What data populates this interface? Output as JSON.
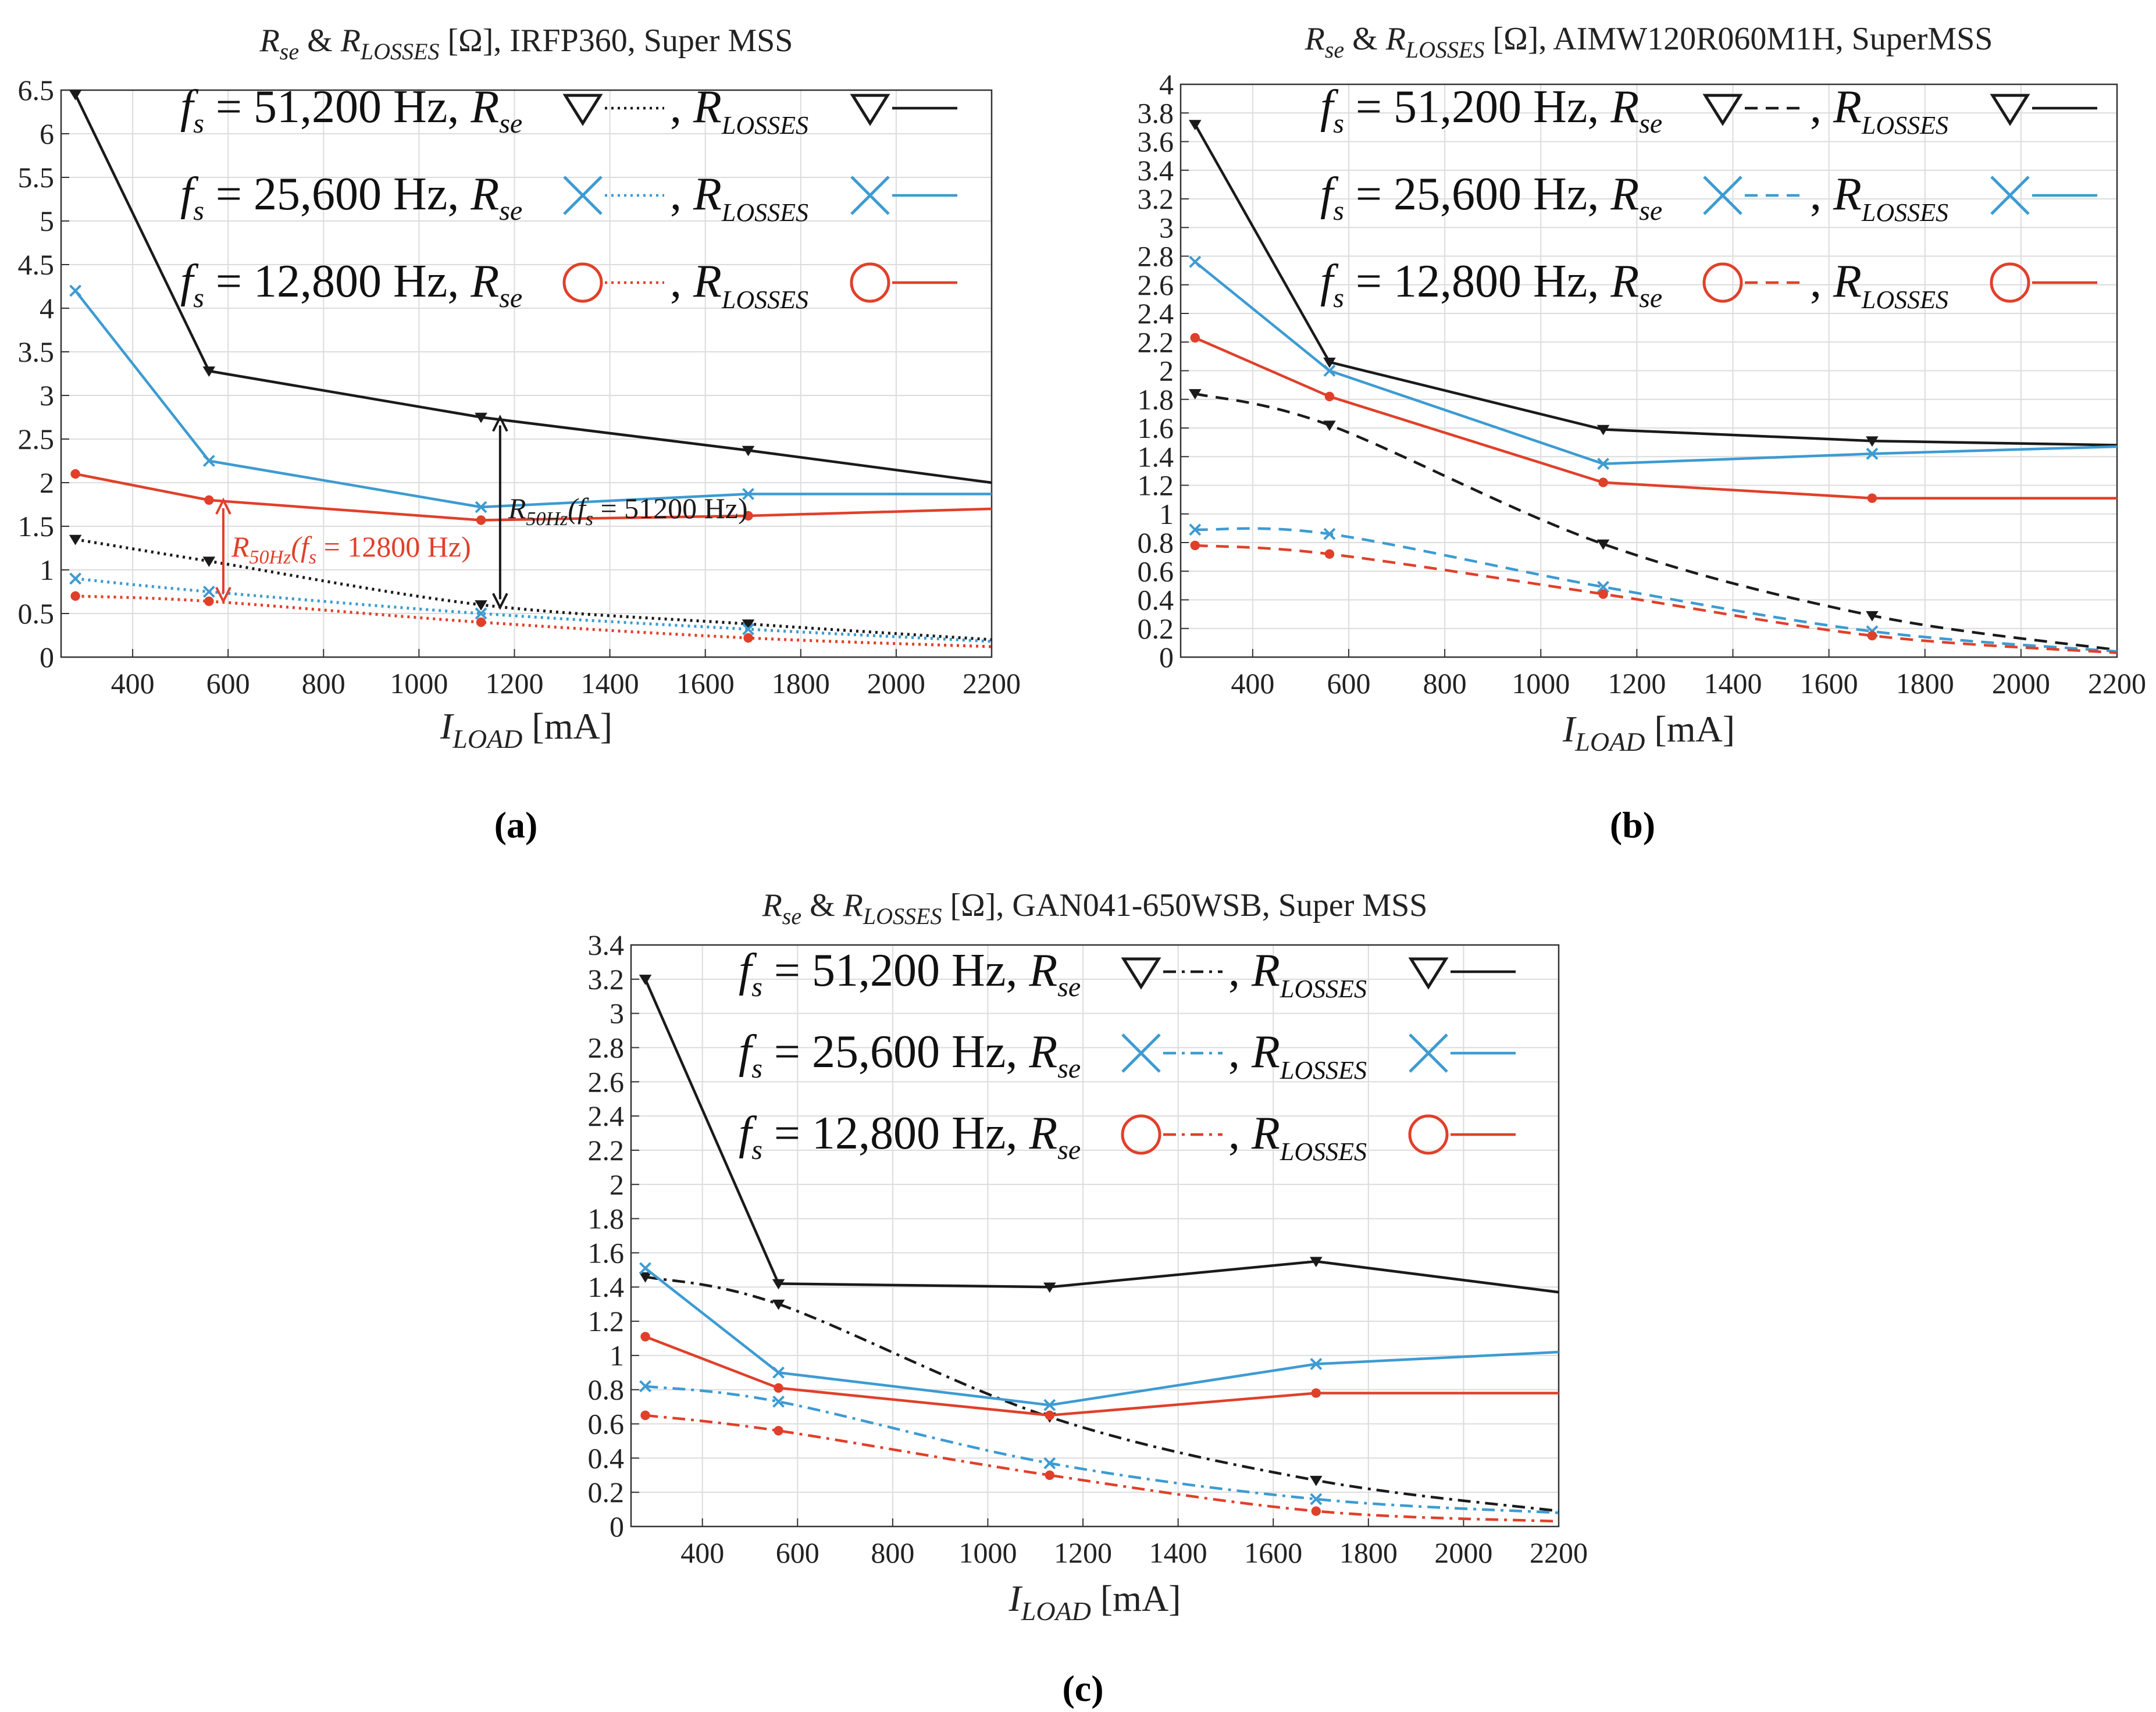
{
  "figure": {
    "captions": [
      "(a)",
      "(b)",
      "(c)"
    ]
  },
  "colors": {
    "black": "#1a1a1a",
    "blue": "#3d9bd2",
    "red": "#e0402a",
    "grid": "#dcdcdc",
    "axis": "#333333"
  },
  "chart_data": [
    {
      "type": "line",
      "title_parts": {
        "r1": "R",
        "s1": "se",
        "amp": " & ",
        "r2": "R",
        "s2": "LOSSES",
        "rest": " [Ω], IRFP360, Super MSS"
      },
      "xlabel": {
        "main": "I",
        "sub": "LOAD",
        "unit": " [mA]"
      },
      "xlim": [
        250,
        2200
      ],
      "ylim": [
        0,
        6.5
      ],
      "xticks": [
        400,
        600,
        800,
        1000,
        1200,
        1400,
        1600,
        1800,
        2000,
        2200
      ],
      "yticks": [
        0,
        0.5,
        1,
        1.5,
        2,
        2.5,
        3,
        3.5,
        4,
        4.5,
        5,
        5.5,
        6,
        6.5
      ],
      "grid": true,
      "legend_rows": [
        {
          "fs": "f",
          "fsub": "s",
          "freq": " = 51,200 Hz, ",
          "rse": "R",
          "rsesub": "se",
          "comma": " , ",
          "rl": "R",
          "rlsub": "LOSSES"
        },
        {
          "fs": "f",
          "fsub": "s",
          "freq": " = 25,600 Hz, ",
          "rse": "R",
          "rsesub": "se",
          "comma": " , ",
          "rl": "R",
          "rlsub": "LOSSES"
        },
        {
          "fs": "f",
          "fsub": "s",
          "freq": " = 12,800 Hz, ",
          "rse": "R",
          "rsesub": "se",
          "comma": " , ",
          "rl": "R",
          "rlsub": "LOSSES"
        }
      ],
      "series": [
        {
          "name": "Rse 51,200 Hz",
          "color": "black",
          "style": "dotted",
          "marker": "triangle",
          "x": [
            280,
            560,
            1130,
            1690,
            2200
          ],
          "y": [
            1.35,
            1.1,
            0.6,
            0.38,
            0.2
          ]
        },
        {
          "name": "RLOSSES 51,200 Hz",
          "color": "black",
          "style": "solid",
          "marker": "triangle",
          "x": [
            280,
            560,
            1130,
            1690,
            2200
          ],
          "y": [
            6.45,
            3.28,
            2.75,
            2.37,
            2.0
          ]
        },
        {
          "name": "Rse 25,600 Hz",
          "color": "blue",
          "style": "dotted",
          "marker": "x",
          "x": [
            280,
            560,
            1130,
            1690,
            2200
          ],
          "y": [
            0.9,
            0.75,
            0.5,
            0.32,
            0.18
          ]
        },
        {
          "name": "RLOSSES 25,600 Hz",
          "color": "blue",
          "style": "solid",
          "marker": "x",
          "x": [
            280,
            560,
            1130,
            1690,
            2200
          ],
          "y": [
            4.2,
            2.25,
            1.72,
            1.87,
            1.87
          ]
        },
        {
          "name": "Rse 12,800 Hz",
          "color": "red",
          "style": "dotted",
          "marker": "circle",
          "x": [
            280,
            560,
            1130,
            1690,
            2200
          ],
          "y": [
            0.7,
            0.64,
            0.4,
            0.22,
            0.12
          ]
        },
        {
          "name": "RLOSSES 12,800 Hz",
          "color": "red",
          "style": "solid",
          "marker": "circle",
          "x": [
            280,
            560,
            1130,
            1690,
            2200
          ],
          "y": [
            2.1,
            1.8,
            1.57,
            1.62,
            1.7
          ]
        }
      ],
      "annotations": [
        {
          "id": "ann-red",
          "color": "red",
          "x": 590,
          "y0": 0.64,
          "y1": 1.8,
          "text_main": "R",
          "text_sub": "50Hz",
          "text_mid": "(f",
          "text_sub2": "s",
          "text_end": " = 12800 Hz)"
        },
        {
          "id": "ann-black",
          "color": "black",
          "x": 1170,
          "y0": 0.57,
          "y1": 2.75,
          "text_main": "R",
          "text_sub": "50Hz",
          "text_mid": "(f",
          "text_sub2": "s",
          "text_end": " = 51200 Hz)"
        }
      ]
    },
    {
      "type": "line",
      "title_parts": {
        "r1": "R",
        "s1": "se",
        "amp": " & ",
        "r2": "R",
        "s2": "LOSSES",
        "rest": " [Ω], AIMW120R060M1H, SuperMSS"
      },
      "xlabel": {
        "main": "I",
        "sub": "LOAD",
        "unit": " [mA]"
      },
      "xlim": [
        250,
        2200
      ],
      "ylim": [
        0,
        4
      ],
      "xticks": [
        400,
        600,
        800,
        1000,
        1200,
        1400,
        1600,
        1800,
        2000,
        2200
      ],
      "yticks": [
        0,
        0.2,
        0.4,
        0.6,
        0.8,
        1,
        1.2,
        1.4,
        1.6,
        1.8,
        2,
        2.2,
        2.4,
        2.6,
        2.8,
        3,
        3.2,
        3.4,
        3.6,
        3.8,
        4
      ],
      "grid": true,
      "legend_rows": [
        {
          "fs": "f",
          "fsub": "s",
          "freq": " = 51,200 Hz, ",
          "rse": "R",
          "rsesub": "se",
          "comma": " , ",
          "rl": "R",
          "rlsub": "LOSSES"
        },
        {
          "fs": "f",
          "fsub": "s",
          "freq": " = 25,600 Hz, ",
          "rse": "R",
          "rsesub": "se",
          "comma": " , ",
          "rl": "R",
          "rlsub": "LOSSES"
        },
        {
          "fs": "f",
          "fsub": "s",
          "freq": " = 12,800 Hz, ",
          "rse": "R",
          "rsesub": "se",
          "comma": " , ",
          "rl": "R",
          "rlsub": "LOSSES"
        }
      ],
      "series": [
        {
          "name": "Rse 51,200 Hz",
          "color": "black",
          "style": "dashed",
          "marker": "triangle",
          "x": [
            280,
            560,
            1130,
            1690,
            2200
          ],
          "y": [
            1.84,
            1.62,
            0.79,
            0.29,
            0.05
          ]
        },
        {
          "name": "RLOSSES 51,200 Hz",
          "color": "black",
          "style": "solid",
          "marker": "triangle",
          "x": [
            280,
            560,
            1130,
            1690,
            2200
          ],
          "y": [
            3.72,
            2.06,
            1.59,
            1.51,
            1.48
          ]
        },
        {
          "name": "Rse 25,600 Hz",
          "color": "blue",
          "style": "dashed",
          "marker": "x",
          "x": [
            280,
            560,
            1130,
            1690,
            2200
          ],
          "y": [
            0.89,
            0.86,
            0.49,
            0.18,
            0.04
          ]
        },
        {
          "name": "RLOSSES 25,600 Hz",
          "color": "blue",
          "style": "solid",
          "marker": "x",
          "x": [
            280,
            560,
            1130,
            1690,
            2200
          ],
          "y": [
            2.76,
            2.0,
            1.35,
            1.42,
            1.47
          ]
        },
        {
          "name": "Rse 12,800 Hz",
          "color": "red",
          "style": "dashed",
          "marker": "circle",
          "x": [
            280,
            560,
            1130,
            1690,
            2200
          ],
          "y": [
            0.78,
            0.72,
            0.44,
            0.15,
            0.03
          ]
        },
        {
          "name": "RLOSSES 12,800 Hz",
          "color": "red",
          "style": "solid",
          "marker": "circle",
          "x": [
            280,
            560,
            1130,
            1690,
            2200
          ],
          "y": [
            2.23,
            1.82,
            1.22,
            1.11,
            1.11
          ]
        }
      ],
      "annotations": []
    },
    {
      "type": "line",
      "title_parts": {
        "r1": "R",
        "s1": "se",
        "amp": " & ",
        "r2": "R",
        "s2": "LOSSES",
        "rest": " [Ω], GAN041-650WSB, Super MSS"
      },
      "xlabel": {
        "main": "I",
        "sub": "LOAD",
        "unit": " [mA]"
      },
      "xlim": [
        250,
        2200
      ],
      "ylim": [
        0,
        3.4
      ],
      "xticks": [
        400,
        600,
        800,
        1000,
        1200,
        1400,
        1600,
        1800,
        2000,
        2200
      ],
      "yticks": [
        0,
        0.2,
        0.4,
        0.6,
        0.8,
        1,
        1.2,
        1.4,
        1.6,
        1.8,
        2,
        2.2,
        2.4,
        2.6,
        2.8,
        3,
        3.2,
        3.4
      ],
      "grid": true,
      "legend_rows": [
        {
          "fs": "f",
          "fsub": "s",
          "freq": " = 51,200 Hz, ",
          "rse": "R",
          "rsesub": "se",
          "comma": " , ",
          "rl": "R",
          "rlsub": "LOSSES"
        },
        {
          "fs": "f",
          "fsub": "s",
          "freq": " = 25,600 Hz, ",
          "rse": "R",
          "rsesub": "se",
          "comma": " , ",
          "rl": "R",
          "rlsub": "LOSSES"
        },
        {
          "fs": "f",
          "fsub": "s",
          "freq": " = 12,800 Hz, ",
          "rse": "R",
          "rsesub": "se",
          "comma": " , ",
          "rl": "R",
          "rlsub": "LOSSES"
        }
      ],
      "series": [
        {
          "name": "Rse 51,200 Hz",
          "color": "black",
          "style": "dashdot",
          "marker": "triangle",
          "x": [
            280,
            560,
            1130,
            1690,
            2200
          ],
          "y": [
            1.46,
            1.3,
            0.64,
            0.27,
            0.09
          ]
        },
        {
          "name": "RLOSSES 51,200 Hz",
          "color": "black",
          "style": "solid",
          "marker": "triangle",
          "x": [
            280,
            560,
            1130,
            1690,
            2200
          ],
          "y": [
            3.2,
            1.42,
            1.4,
            1.55,
            1.37
          ]
        },
        {
          "name": "Rse 25,600 Hz",
          "color": "blue",
          "style": "dashdot",
          "marker": "x",
          "x": [
            280,
            560,
            1130,
            1690,
            2200
          ],
          "y": [
            0.82,
            0.73,
            0.37,
            0.16,
            0.08
          ]
        },
        {
          "name": "RLOSSES 25,600 Hz",
          "color": "blue",
          "style": "solid",
          "marker": "x",
          "x": [
            280,
            560,
            1130,
            1690,
            2200
          ],
          "y": [
            1.51,
            0.9,
            0.71,
            0.95,
            1.02
          ]
        },
        {
          "name": "Rse 12,800 Hz",
          "color": "red",
          "style": "dashdot",
          "marker": "circle",
          "x": [
            280,
            560,
            1130,
            1690,
            2200
          ],
          "y": [
            0.65,
            0.56,
            0.3,
            0.09,
            0.03
          ]
        },
        {
          "name": "RLOSSES 12,800 Hz",
          "color": "red",
          "style": "solid",
          "marker": "circle",
          "x": [
            280,
            560,
            1130,
            1690,
            2200
          ],
          "y": [
            1.11,
            0.81,
            0.65,
            0.78,
            0.78
          ]
        }
      ],
      "annotations": []
    }
  ]
}
